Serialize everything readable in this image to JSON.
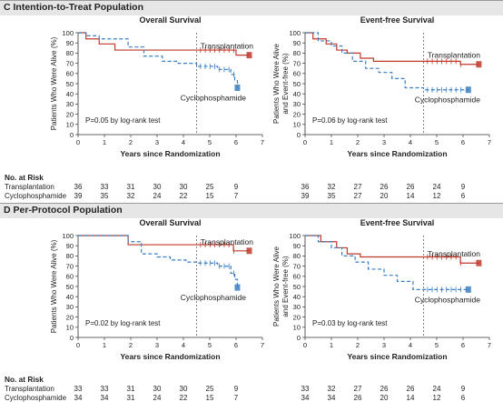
{
  "panels": [
    {
      "label": "C  Intention-to-Treat Population",
      "charts": [
        {
          "type": "line",
          "title": "Overall Survival",
          "ylabel": "Patients Who Were Alive (%)",
          "xlabel": "Years since Randomization",
          "xlim": [
            0,
            7
          ],
          "ylim": [
            0,
            100
          ],
          "xticks": [
            "0",
            "1",
            "2",
            "3",
            "4",
            "5",
            "6",
            "7"
          ],
          "yticks": [
            "0",
            "10",
            "20",
            "30",
            "40",
            "50",
            "60",
            "70",
            "80",
            "90",
            "100"
          ],
          "annotation": "P=0.05 by log-rank test",
          "cutoff_x": 4.5,
          "series": [
            {
              "name": "Transplantation",
              "color": "#c0392b",
              "style": "solid",
              "x": [
                0,
                0.3,
                0.8,
                1.4,
                4.5,
                6.0,
                6.5
              ],
              "y": [
                100,
                94,
                89,
                83,
                83,
                78,
                78
              ]
            },
            {
              "name": "Cyclophosphamide",
              "color": "#3a7fc1",
              "style": "dashed",
              "x": [
                0,
                0.3,
                0.8,
                1.9,
                2.5,
                3.2,
                3.8,
                4.5,
                5.3,
                5.8,
                5.95,
                6.05
              ],
              "y": [
                100,
                97,
                94,
                86,
                77,
                72,
                70,
                67,
                64,
                59,
                53,
                46
              ]
            }
          ]
        },
        {
          "type": "line",
          "title": "Event-free Survival",
          "ylabel": "Patients Who Were Alive and Event-free (%)",
          "xlabel": "Years since Randomization",
          "xlim": [
            0,
            7
          ],
          "ylim": [
            0,
            100
          ],
          "xticks": [
            "0",
            "1",
            "2",
            "3",
            "4",
            "5",
            "6",
            "7"
          ],
          "yticks": [
            "0",
            "10",
            "20",
            "30",
            "40",
            "50",
            "60",
            "70",
            "80",
            "90",
            "100"
          ],
          "annotation": "P=0.06 by log-rank test",
          "cutoff_x": 4.5,
          "series": [
            {
              "name": "Transplantation",
              "color": "#c0392b",
              "style": "solid",
              "x": [
                0,
                0.3,
                0.8,
                1.2,
                1.6,
                2.1,
                2.6,
                4.5,
                5.9,
                6.6
              ],
              "y": [
                100,
                94,
                89,
                83,
                80,
                75,
                72,
                72,
                69,
                69
              ]
            },
            {
              "name": "Cyclophosphamide",
              "color": "#3a7fc1",
              "style": "dashed",
              "x": [
                0,
                0.5,
                1.0,
                1.4,
                1.8,
                2.3,
                2.8,
                3.3,
                3.8,
                4.5,
                6.0,
                6.2
              ],
              "y": [
                100,
                92,
                87,
                80,
                72,
                65,
                61,
                55,
                46,
                44,
                44,
                44
              ]
            }
          ]
        }
      ],
      "risk": {
        "header": "No. at Risk",
        "rows": [
          {
            "name": "Transplantation",
            "left": [
              "36",
              "33",
              "31",
              "30",
              "30",
              "25",
              "9"
            ],
            "right": [
              "36",
              "32",
              "27",
              "26",
              "26",
              "24",
              "9"
            ]
          },
          {
            "name": "Cyclophosphamide",
            "left": [
              "39",
              "35",
              "32",
              "24",
              "22",
              "15",
              "7"
            ],
            "right": [
              "39",
              "35",
              "27",
              "20",
              "14",
              "12",
              "6"
            ]
          }
        ]
      }
    },
    {
      "label": "D  Per-Protocol Population",
      "charts": [
        {
          "type": "line",
          "title": "Overall Survival",
          "ylabel": "Patients Who Were Alive (%)",
          "xlabel": "Years since Randomization",
          "xlim": [
            0,
            7
          ],
          "ylim": [
            0,
            100
          ],
          "xticks": [
            "0",
            "1",
            "2",
            "3",
            "4",
            "5",
            "6",
            "7"
          ],
          "yticks": [
            "0",
            "10",
            "20",
            "30",
            "40",
            "50",
            "60",
            "70",
            "80",
            "90",
            "100"
          ],
          "annotation": "P=0.02 by log-rank test",
          "cutoff_x": 4.5,
          "series": [
            {
              "name": "Transplantation",
              "color": "#c0392b",
              "style": "solid",
              "x": [
                0,
                1.9,
                4.5,
                5.9,
                6.5
              ],
              "y": [
                100,
                91,
                91,
                85,
                85
              ]
            },
            {
              "name": "Cyclophosphamide",
              "color": "#3a7fc1",
              "style": "dashed",
              "x": [
                0,
                1.9,
                2.4,
                3.0,
                3.5,
                4.1,
                4.5,
                5.3,
                5.8,
                5.95,
                6.05
              ],
              "y": [
                100,
                94,
                82,
                79,
                76,
                74,
                73,
                70,
                63,
                57,
                49
              ]
            }
          ]
        },
        {
          "type": "line",
          "title": "Event-free Survival",
          "ylabel": "Patients Who Were Alive and Event-free (%)",
          "xlabel": "Years since Randomization",
          "xlim": [
            0,
            7
          ],
          "ylim": [
            0,
            100
          ],
          "xticks": [
            "0",
            "1",
            "2",
            "3",
            "4",
            "5",
            "6",
            "7"
          ],
          "yticks": [
            "0",
            "10",
            "20",
            "30",
            "40",
            "50",
            "60",
            "70",
            "80",
            "90",
            "100"
          ],
          "annotation": "P=0.03 by log-rank test",
          "cutoff_x": 4.5,
          "series": [
            {
              "name": "Transplantation",
              "color": "#c0392b",
              "style": "solid",
              "x": [
                0,
                0.6,
                1.2,
                1.6,
                2.1,
                4.5,
                5.9,
                6.6
              ],
              "y": [
                100,
                94,
                88,
                82,
                79,
                79,
                73,
                73
              ]
            },
            {
              "name": "Cyclophosphamide",
              "color": "#3a7fc1",
              "style": "dashed",
              "x": [
                0,
                0.5,
                1.0,
                1.4,
                1.9,
                2.4,
                3.0,
                3.5,
                4.1,
                4.5,
                6.0,
                6.2
              ],
              "y": [
                100,
                94,
                88,
                80,
                74,
                67,
                61,
                55,
                47,
                47,
                47,
                47
              ]
            }
          ]
        }
      ],
      "risk": {
        "header": "No. at Risk",
        "rows": [
          {
            "name": "Transplantation",
            "left": [
              "33",
              "33",
              "31",
              "30",
              "30",
              "25",
              "9"
            ],
            "right": [
              "33",
              "32",
              "27",
              "26",
              "26",
              "24",
              "9"
            ]
          },
          {
            "name": "Cyclophosphamide",
            "left": [
              "34",
              "34",
              "31",
              "24",
              "22",
              "15",
              "7"
            ],
            "right": [
              "34",
              "34",
              "26",
              "20",
              "14",
              "12",
              "6"
            ]
          }
        ]
      }
    }
  ]
}
